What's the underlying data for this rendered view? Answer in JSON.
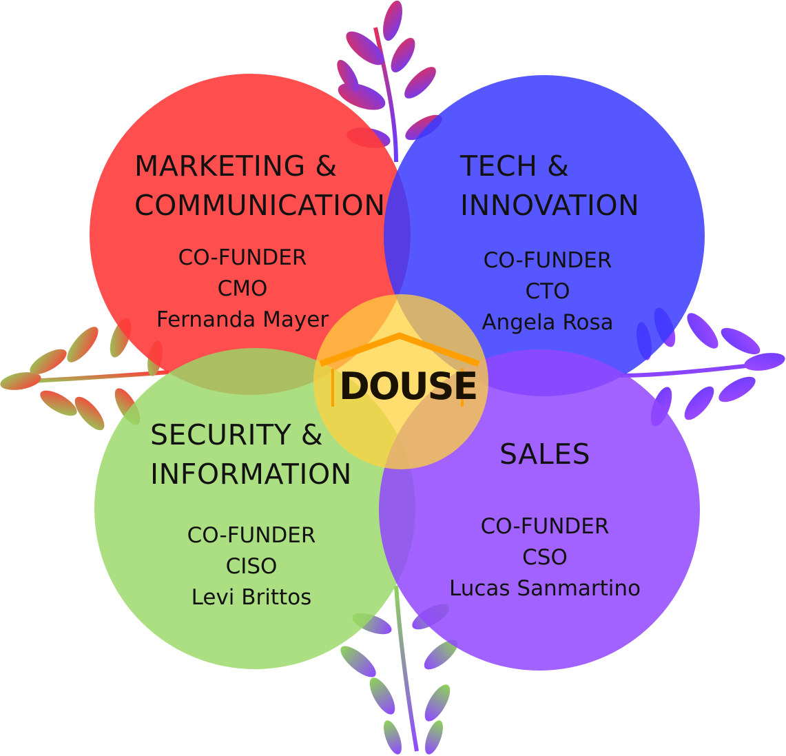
{
  "logo": {
    "text": "DOUSE"
  },
  "circles": [
    {
      "key": "marketing",
      "color": "#ff3b3b",
      "title_line1": "MARKETING &",
      "title_line2": "COMMUNICATION",
      "role_line1": "CO-FUNDER",
      "role_line2": "CMO",
      "person": "Fernanda Mayer"
    },
    {
      "key": "tech",
      "color": "#3a3aff",
      "title_line1": "TECH &",
      "title_line2": "INNOVATION",
      "role_line1": "CO-FUNDER",
      "role_line2": "CTO",
      "person": "Angela Rosa"
    },
    {
      "key": "security",
      "color": "#99d866",
      "title_line1": "SECURITY &",
      "title_line2": "INFORMATION",
      "role_line1": "CO-FUNDER",
      "role_line2": "CISO",
      "person": "Levi Brittos"
    },
    {
      "key": "sales",
      "color": "#9147ff",
      "title_line1": "SALES",
      "role_line1": "CO-FUNDER",
      "role_line2": "CSO",
      "person": "Lucas Sanmartino"
    }
  ],
  "center": {
    "color": "#ffd23f",
    "accent": "#ff9f00"
  }
}
